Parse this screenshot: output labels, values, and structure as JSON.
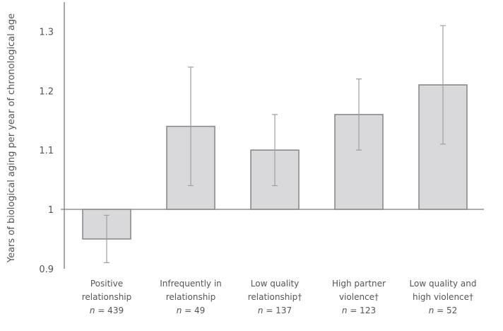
{
  "chart_data": {
    "type": "bar",
    "title": "",
    "xlabel": "",
    "ylabel": "Years of biological aging per year of chronological age",
    "ylim": [
      0.9,
      1.35
    ],
    "baseline": 1.0,
    "yticks": [
      0.9,
      1,
      1.1,
      1.2,
      1.3
    ],
    "ytick_labels": [
      "0.9",
      "1",
      "1.1",
      "1.2",
      "1.3"
    ],
    "grid": false,
    "legend": "none",
    "categories": [
      {
        "line1": "Positive",
        "line2": "relationship",
        "n_label": "n",
        "n_value": "= 439"
      },
      {
        "line1": "Infrequently in",
        "line2": "relationship",
        "n_label": "n",
        "n_value": "= 49"
      },
      {
        "line1": "Low quality",
        "line2": "relationship†",
        "n_label": "n",
        "n_value": "= 137"
      },
      {
        "line1": "High partner",
        "line2": "violence†",
        "n_label": "n",
        "n_value": "= 123"
      },
      {
        "line1": "Low quality and",
        "line2": "high violence†",
        "n_label": "n",
        "n_value": "= 52"
      }
    ],
    "values": [
      0.95,
      1.14,
      1.1,
      1.16,
      1.21
    ],
    "error_low": [
      0.91,
      1.04,
      1.04,
      1.1,
      1.11
    ],
    "error_high": [
      0.99,
      1.24,
      1.16,
      1.22,
      1.31
    ],
    "colors": {
      "bar_fill": "#d9d9db",
      "bar_stroke": "#8a8a8a",
      "axis": "#7a7a7a",
      "error_bar": "#a0a0a0"
    }
  }
}
